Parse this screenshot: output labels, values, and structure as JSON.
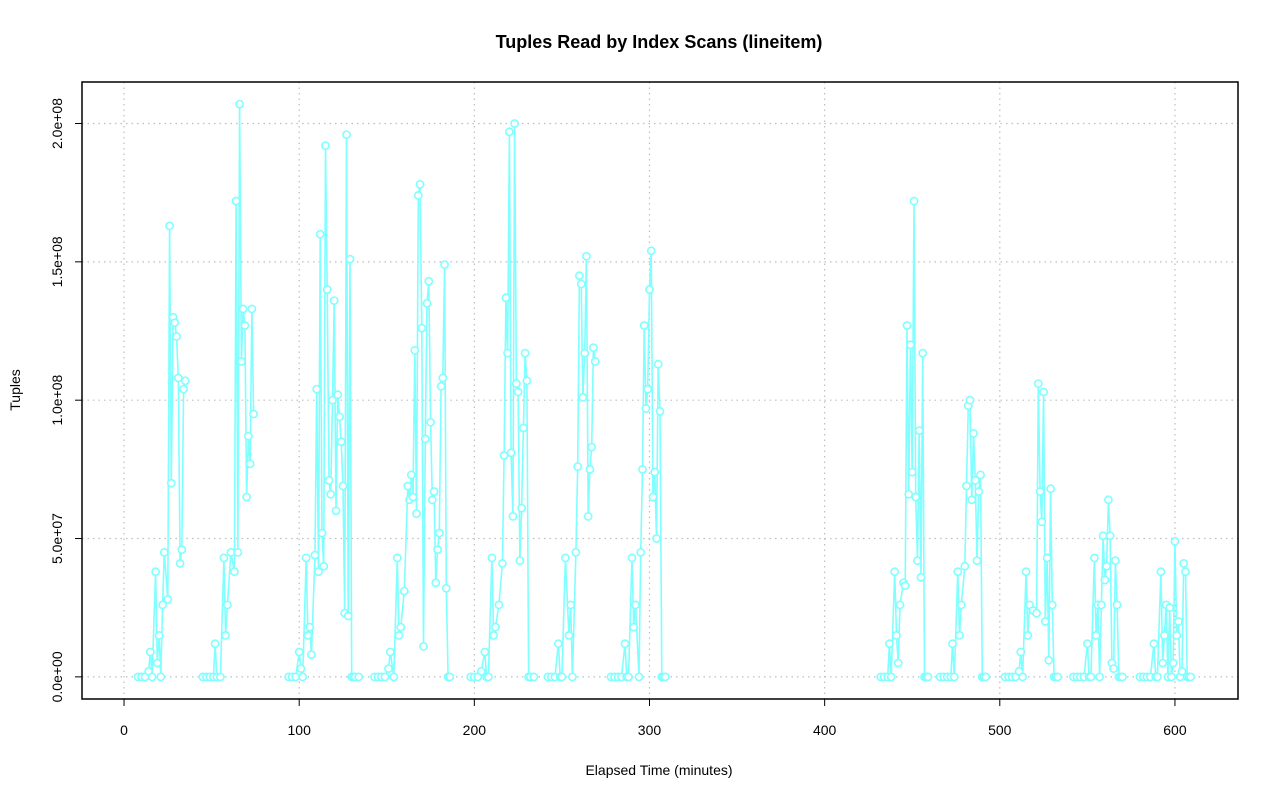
{
  "chart_data": {
    "type": "line",
    "title": "Tuples Read by Index Scans (lineitem)",
    "xlabel": "Elapsed Time (minutes)",
    "ylabel": "Tuples",
    "xlim": [
      -24,
      636
    ],
    "ylim": [
      -8000000,
      215000000
    ],
    "x_ticks": [
      0,
      100,
      200,
      300,
      400,
      500,
      600
    ],
    "x_tick_labels": [
      "0",
      "100",
      "200",
      "300",
      "400",
      "500",
      "600"
    ],
    "y_ticks": [
      0,
      50000000,
      100000000,
      150000000,
      200000000
    ],
    "y_tick_labels": [
      "0.0e+00",
      "5.0e+07",
      "1.0e+08",
      "1.5e+08",
      "2.0e+08"
    ],
    "grid": true,
    "colors": {
      "series": "#7fffff",
      "grid": "#bebebe",
      "axis": "#000000"
    },
    "series": [
      {
        "segments": [
          {
            "x": [
              8,
              10,
              12,
              14,
              15,
              16,
              18,
              19,
              20,
              21,
              22,
              23,
              25,
              26,
              27,
              28,
              29,
              30,
              31,
              32,
              33,
              34,
              35
            ],
            "y": [
              0,
              0,
              0,
              2000000,
              9000000,
              0,
              38000000,
              5000000,
              15000000,
              0,
              26000000,
              45000000,
              28000000,
              163000000,
              70000000,
              130000000,
              128000000,
              123000000,
              108000000,
              41000000,
              46000000,
              104000000,
              107000000
            ]
          },
          {
            "x": [
              45,
              47,
              49,
              51,
              52,
              53,
              55,
              57,
              58,
              59,
              61,
              63,
              64,
              65,
              66,
              67,
              68,
              69,
              70,
              71,
              72,
              73,
              74
            ],
            "y": [
              0,
              0,
              0,
              0,
              12000000,
              0,
              0,
              43000000,
              15000000,
              26000000,
              45000000,
              38000000,
              172000000,
              45000000,
              207000000,
              114000000,
              133000000,
              127000000,
              65000000,
              87000000,
              77000000,
              133000000,
              95000000
            ]
          },
          {
            "x": [
              94,
              96,
              98,
              100,
              101,
              102,
              104,
              105,
              106,
              107,
              109,
              110,
              111,
              112,
              113,
              114,
              115,
              116,
              117,
              118,
              119,
              120,
              121,
              122,
              123,
              124,
              125,
              126,
              127,
              128,
              129,
              130,
              131,
              132,
              134
            ],
            "y": [
              0,
              0,
              0,
              9000000,
              3000000,
              0,
              43000000,
              15000000,
              18000000,
              8000000,
              44000000,
              104000000,
              38000000,
              160000000,
              52000000,
              40000000,
              192000000,
              140000000,
              71000000,
              66000000,
              100000000,
              136000000,
              60000000,
              102000000,
              94000000,
              85000000,
              69000000,
              23000000,
              196000000,
              22000000,
              151000000,
              0,
              0,
              0,
              0
            ]
          },
          {
            "x": [
              143,
              145,
              147,
              149,
              151,
              152,
              154,
              156,
              157,
              158,
              160,
              162,
              163,
              164,
              165,
              166,
              167,
              168,
              169,
              170,
              171,
              172,
              173,
              174,
              175,
              176,
              177,
              178,
              179,
              180,
              181,
              182,
              183,
              184,
              185,
              186
            ],
            "y": [
              0,
              0,
              0,
              0,
              3000000,
              9000000,
              0,
              43000000,
              15000000,
              18000000,
              31000000,
              69000000,
              64000000,
              73000000,
              65000000,
              118000000,
              59000000,
              174000000,
              178000000,
              126000000,
              11000000,
              86000000,
              135000000,
              143000000,
              92000000,
              64000000,
              67000000,
              34000000,
              46000000,
              52000000,
              105000000,
              108000000,
              149000000,
              32000000,
              0,
              0
            ]
          },
          {
            "x": [
              198,
              200,
              202,
              204,
              206,
              207,
              208,
              210,
              211,
              212,
              214,
              216,
              217,
              218,
              219,
              220,
              221,
              222,
              223,
              224,
              225,
              226,
              227,
              228,
              229,
              230,
              231,
              232,
              234
            ],
            "y": [
              0,
              0,
              0,
              2000000,
              9000000,
              0,
              0,
              43000000,
              15000000,
              18000000,
              26000000,
              41000000,
              80000000,
              137000000,
              117000000,
              197000000,
              81000000,
              58000000,
              200000000,
              106000000,
              103000000,
              42000000,
              61000000,
              90000000,
              117000000,
              107000000,
              0,
              0,
              0
            ]
          },
          {
            "x": [
              242,
              244,
              246,
              248,
              249,
              250,
              252,
              254,
              255,
              256,
              258,
              259,
              260,
              261,
              262,
              263,
              264,
              265,
              266,
              267,
              268,
              269
            ],
            "y": [
              0,
              0,
              0,
              12000000,
              0,
              0,
              43000000,
              15000000,
              26000000,
              0,
              45000000,
              76000000,
              145000000,
              142000000,
              101000000,
              117000000,
              152000000,
              58000000,
              75000000,
              83000000,
              119000000,
              114000000
            ]
          },
          {
            "x": [
              278,
              280,
              282,
              284,
              286,
              287,
              288,
              290,
              291,
              292,
              294,
              295,
              296,
              297,
              298,
              299,
              300,
              301,
              302,
              303,
              304,
              305,
              306,
              307,
              308,
              309
            ],
            "y": [
              0,
              0,
              0,
              0,
              12000000,
              0,
              0,
              43000000,
              18000000,
              26000000,
              0,
              45000000,
              75000000,
              127000000,
              97000000,
              104000000,
              140000000,
              154000000,
              65000000,
              74000000,
              50000000,
              113000000,
              96000000,
              0,
              0,
              0
            ]
          },
          {
            "x": [
              432,
              434,
              436,
              437,
              438,
              440,
              441,
              442,
              443,
              445,
              446,
              447,
              448,
              449,
              450,
              451,
              452,
              453,
              454,
              455,
              456,
              457,
              458,
              459
            ],
            "y": [
              0,
              0,
              0,
              12000000,
              0,
              38000000,
              15000000,
              5000000,
              26000000,
              34000000,
              33000000,
              127000000,
              66000000,
              120000000,
              74000000,
              172000000,
              65000000,
              42000000,
              89000000,
              36000000,
              117000000,
              0,
              0,
              0
            ]
          },
          {
            "x": [
              466,
              468,
              470,
              472,
              473,
              474,
              476,
              477,
              478,
              480,
              481,
              482,
              483,
              484,
              485,
              486,
              487,
              488,
              489,
              490,
              491,
              492
            ],
            "y": [
              0,
              0,
              0,
              0,
              12000000,
              0,
              38000000,
              15000000,
              26000000,
              40000000,
              69000000,
              98000000,
              100000000,
              64000000,
              88000000,
              71000000,
              42000000,
              67000000,
              73000000,
              0,
              0,
              0
            ]
          },
          {
            "x": [
              503,
              505,
              507,
              509,
              511,
              512,
              513,
              515,
              516,
              517,
              519,
              521,
              522,
              523,
              524,
              525,
              526,
              527,
              528,
              529,
              530,
              531,
              532,
              533
            ],
            "y": [
              0,
              0,
              0,
              0,
              2000000,
              9000000,
              0,
              38000000,
              15000000,
              26000000,
              24000000,
              23000000,
              106000000,
              67000000,
              56000000,
              103000000,
              20000000,
              43000000,
              6000000,
              68000000,
              26000000,
              0,
              0,
              0
            ]
          },
          {
            "x": [
              542,
              544,
              546,
              548,
              550,
              551,
              552,
              554,
              555,
              556,
              557,
              558,
              559,
              560,
              561,
              562,
              563,
              564,
              565,
              566,
              567,
              568,
              569,
              570
            ],
            "y": [
              0,
              0,
              0,
              0,
              12000000,
              0,
              0,
              43000000,
              15000000,
              26000000,
              0,
              26000000,
              51000000,
              35000000,
              40000000,
              64000000,
              51000000,
              5000000,
              3000000,
              42000000,
              26000000,
              0,
              0,
              0
            ]
          },
          {
            "x": [
              580,
              582,
              584,
              586,
              588,
              589,
              590,
              592,
              593,
              594,
              595,
              596,
              597,
              598,
              599,
              600,
              601,
              602,
              603,
              604,
              605,
              606,
              607,
              608,
              609
            ],
            "y": [
              0,
              0,
              0,
              0,
              12000000,
              0,
              0,
              38000000,
              5000000,
              15000000,
              26000000,
              0,
              25000000,
              0,
              5000000,
              49000000,
              15000000,
              20000000,
              0,
              2000000,
              41000000,
              38000000,
              0,
              0,
              0
            ]
          }
        ]
      }
    ]
  }
}
